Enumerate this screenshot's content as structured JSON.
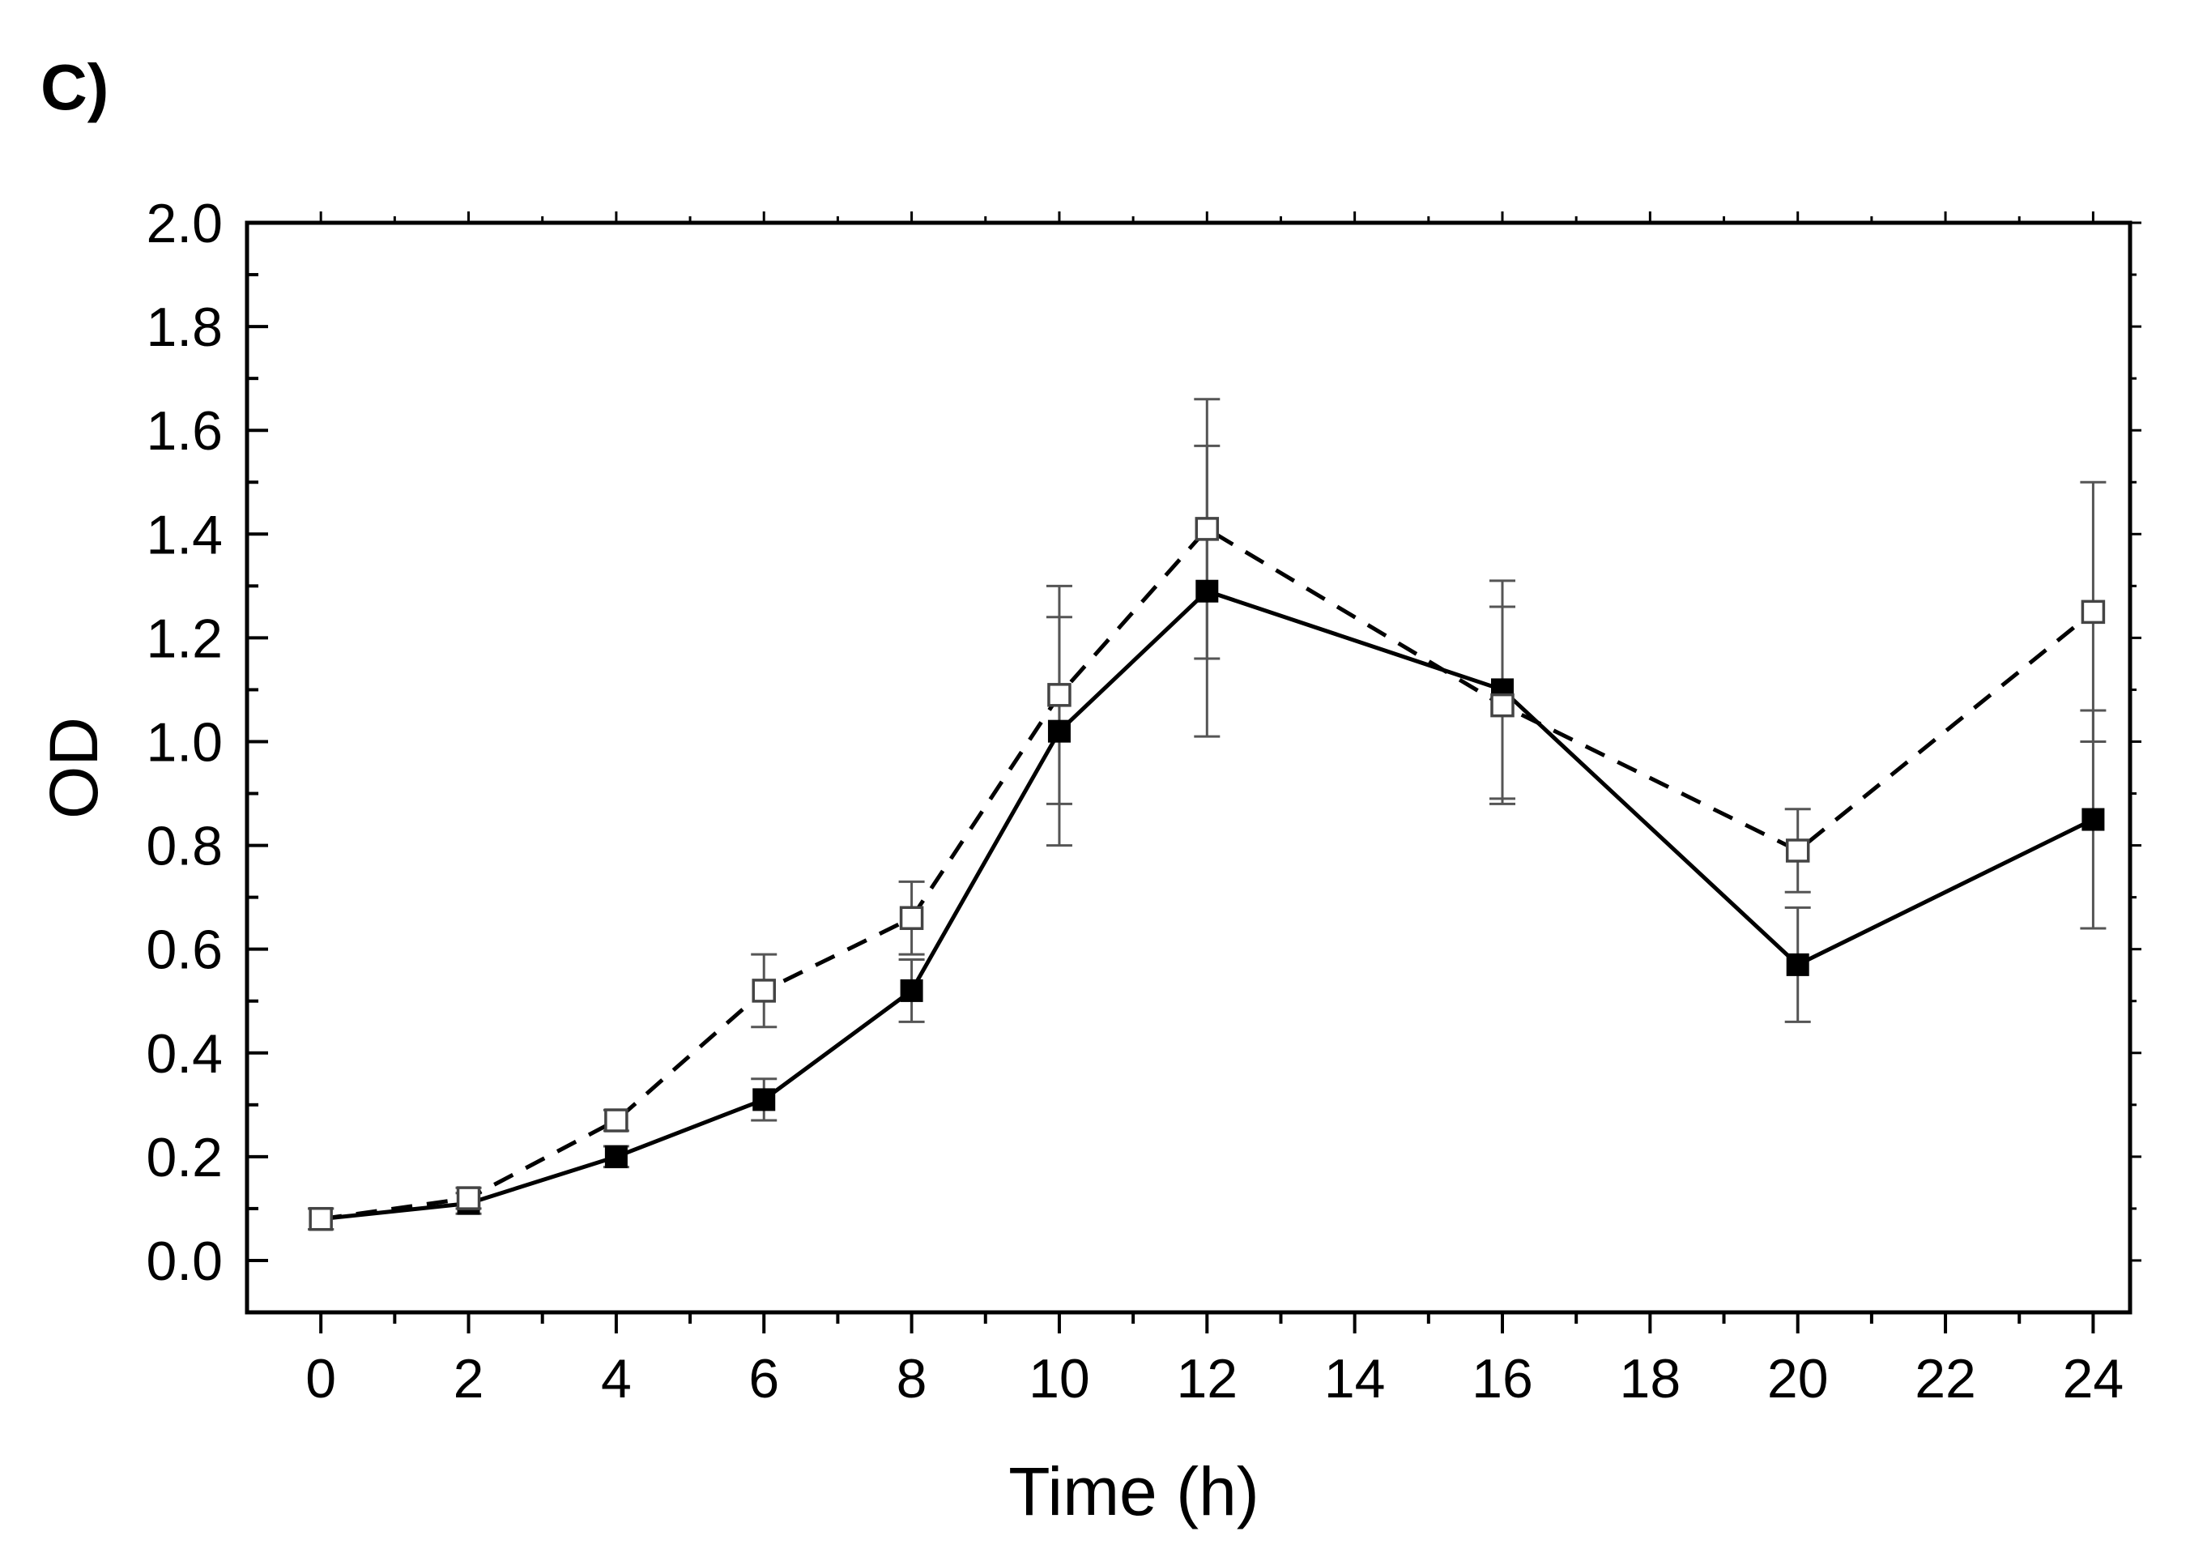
{
  "panel_label": "C)",
  "chart_data": {
    "type": "line",
    "title": "",
    "xlabel": "Time (h)",
    "ylabel": "OD",
    "xlim": [
      -1,
      24.5
    ],
    "ylim": [
      -0.1,
      2.0
    ],
    "x_tick_labels": [
      "0",
      "2",
      "4",
      "6",
      "8",
      "10",
      "12",
      "14",
      "16",
      "18",
      "20",
      "22",
      "24"
    ],
    "y_tick_labels": [
      "0.0",
      "0.2",
      "0.4",
      "0.6",
      "0.8",
      "1.0",
      "1.2",
      "1.4",
      "1.6",
      "1.8",
      "2.0"
    ],
    "series": [
      {
        "name": "filled squares (solid line)",
        "marker": "filled-square",
        "line": "solid",
        "color": "#000000",
        "x": [
          0,
          2,
          4,
          6,
          8,
          10,
          12,
          16,
          20,
          24
        ],
        "y": [
          0.08,
          0.11,
          0.2,
          0.31,
          0.52,
          1.02,
          1.29,
          1.1,
          0.57,
          0.85
        ],
        "error": [
          0.02,
          0.02,
          0.02,
          0.04,
          0.06,
          0.22,
          0.28,
          0.21,
          0.11,
          0.21
        ]
      },
      {
        "name": "open squares (dashed line)",
        "marker": "open-square",
        "line": "dashed",
        "color": "#000000",
        "x": [
          0,
          2,
          4,
          6,
          8,
          10,
          12,
          16,
          20,
          24
        ],
        "y": [
          0.08,
          0.12,
          0.27,
          0.52,
          0.66,
          1.09,
          1.41,
          1.07,
          0.79,
          1.25
        ],
        "error": [
          0.02,
          0.02,
          0.02,
          0.07,
          0.07,
          0.21,
          0.25,
          0.19,
          0.08,
          0.25
        ]
      }
    ]
  }
}
